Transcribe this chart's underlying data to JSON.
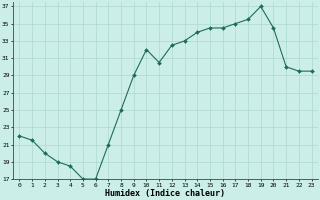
{
  "x": [
    0,
    1,
    2,
    3,
    4,
    5,
    6,
    7,
    8,
    9,
    10,
    11,
    12,
    13,
    14,
    15,
    16,
    17,
    18,
    19,
    20,
    21,
    22,
    23
  ],
  "y": [
    22,
    21.5,
    20,
    19,
    18.5,
    17,
    17,
    21,
    25,
    29,
    32,
    30.5,
    32.5,
    33,
    34,
    34.5,
    34.5,
    35,
    35.5,
    37,
    34.5,
    30,
    29.5,
    29.5
  ],
  "line_color": "#1e6b5e",
  "marker_color": "#1e6b5e",
  "bg_color": "#cceee8",
  "grid_color": "#aad8d0",
  "xlabel": "Humidex (Indice chaleur)",
  "ylim": [
    17,
    37.5
  ],
  "yticks": [
    17,
    19,
    21,
    23,
    25,
    27,
    29,
    31,
    33,
    35,
    37
  ],
  "xlim": [
    -0.5,
    23.5
  ],
  "xticks": [
    0,
    1,
    2,
    3,
    4,
    5,
    6,
    7,
    8,
    9,
    10,
    11,
    12,
    13,
    14,
    15,
    16,
    17,
    18,
    19,
    20,
    21,
    22,
    23
  ]
}
